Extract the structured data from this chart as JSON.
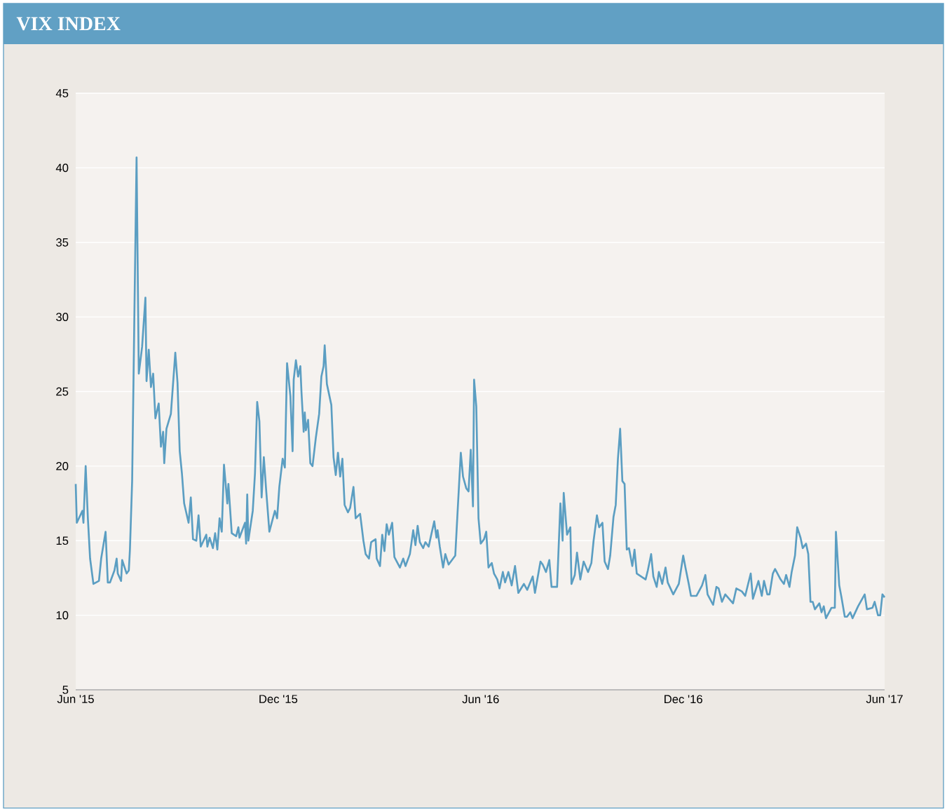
{
  "chart_data": {
    "type": "line",
    "title": "VIX INDEX",
    "xlim": [
      "2015-06-01",
      "2017-06-01"
    ],
    "xticks": [
      {
        "value": "2015-06-01",
        "label": "Jun '15"
      },
      {
        "value": "2015-12-01",
        "label": "Dec '15"
      },
      {
        "value": "2016-06-01",
        "label": "Jun '16"
      },
      {
        "value": "2016-12-01",
        "label": "Dec '16"
      },
      {
        "value": "2017-06-01",
        "label": "Jun '17"
      }
    ],
    "ylim": [
      5,
      45
    ],
    "yticks": [
      5,
      10,
      15,
      20,
      25,
      30,
      35,
      40,
      45
    ],
    "grid": "y",
    "series": [
      {
        "color": "#5b9ec2",
        "x": [
          "2015-06-01",
          "2015-06-02",
          "2015-06-07",
          "2015-06-08",
          "2015-06-10",
          "2015-06-12",
          "2015-06-14",
          "2015-06-17",
          "2015-06-22",
          "2015-06-24",
          "2015-06-28",
          "2015-06-30",
          "2015-07-02",
          "2015-07-06",
          "2015-07-08",
          "2015-07-09",
          "2015-07-12",
          "2015-07-13",
          "2015-07-17",
          "2015-07-19",
          "2015-07-20",
          "2015-07-22",
          "2015-07-24",
          "2015-07-26",
          "2015-07-28",
          "2015-07-31",
          "2015-08-03",
          "2015-08-04",
          "2015-08-06",
          "2015-08-08",
          "2015-08-10",
          "2015-08-12",
          "2015-08-15",
          "2015-08-17",
          "2015-08-19",
          "2015-08-20",
          "2015-08-22",
          "2015-08-26",
          "2015-08-30",
          "2015-09-01",
          "2015-09-03",
          "2015-09-05",
          "2015-09-07",
          "2015-09-11",
          "2015-09-13",
          "2015-09-15",
          "2015-09-18",
          "2015-09-20",
          "2015-09-22",
          "2015-09-27",
          "2015-09-28",
          "2015-09-30",
          "2015-10-03",
          "2015-10-05",
          "2015-10-07",
          "2015-10-09",
          "2015-10-11",
          "2015-10-13",
          "2015-10-16",
          "2015-10-17",
          "2015-10-20",
          "2015-10-24",
          "2015-10-26",
          "2015-10-27",
          "2015-11-01",
          "2015-11-02",
          "2015-11-03",
          "2015-11-04",
          "2015-11-08",
          "2015-11-10",
          "2015-11-12",
          "2015-11-14",
          "2015-11-16",
          "2015-11-18",
          "2015-11-20",
          "2015-11-23",
          "2015-11-28",
          "2015-11-30",
          "2015-12-02",
          "2015-12-05",
          "2015-12-07",
          "2015-12-09",
          "2015-12-12",
          "2015-12-14",
          "2015-12-15",
          "2015-12-17",
          "2015-12-19",
          "2015-12-21",
          "2015-12-22",
          "2015-12-24",
          "2015-12-25",
          "2015-12-26",
          "2015-12-28",
          "2015-12-30",
          "2016-01-01",
          "2016-01-04",
          "2016-01-07",
          "2016-01-09",
          "2016-01-11",
          "2016-01-12",
          "2016-01-14",
          "2016-01-18",
          "2016-01-20",
          "2016-01-22",
          "2016-01-24",
          "2016-01-26",
          "2016-01-28",
          "2016-01-30",
          "2016-02-02",
          "2016-02-04",
          "2016-02-07",
          "2016-02-09",
          "2016-02-13",
          "2016-02-14",
          "2016-02-16",
          "2016-02-18",
          "2016-02-21",
          "2016-02-23",
          "2016-02-27",
          "2016-02-28",
          "2016-03-02",
          "2016-03-04",
          "2016-03-06",
          "2016-03-08",
          "2016-03-10",
          "2016-03-13",
          "2016-03-15",
          "2016-03-20",
          "2016-03-23",
          "2016-03-25",
          "2016-03-29",
          "2016-04-01",
          "2016-04-03",
          "2016-04-05",
          "2016-04-07",
          "2016-04-10",
          "2016-04-12",
          "2016-04-15",
          "2016-04-17",
          "2016-04-20",
          "2016-04-22",
          "2016-04-23",
          "2016-04-25",
          "2016-04-28",
          "2016-04-30",
          "2016-05-03",
          "2016-05-09",
          "2016-05-11",
          "2016-05-14",
          "2016-05-16",
          "2016-05-19",
          "2016-05-21",
          "2016-05-23",
          "2016-05-25",
          "2016-05-26",
          "2016-05-28",
          "2016-05-30",
          "2016-06-01",
          "2016-06-04",
          "2016-06-06",
          "2016-06-08",
          "2016-06-11",
          "2016-06-13",
          "2016-06-16",
          "2016-06-18",
          "2016-06-21",
          "2016-06-23",
          "2016-06-26",
          "2016-06-29",
          "2016-07-02",
          "2016-07-05",
          "2016-07-10",
          "2016-07-13",
          "2016-07-18",
          "2016-07-20",
          "2016-07-25",
          "2016-07-27",
          "2016-07-30",
          "2016-08-02",
          "2016-08-04",
          "2016-08-09",
          "2016-08-12",
          "2016-08-14",
          "2016-08-15",
          "2016-08-18",
          "2016-08-21",
          "2016-08-22",
          "2016-08-25",
          "2016-08-27",
          "2016-08-30",
          "2016-09-02",
          "2016-09-06",
          "2016-09-09",
          "2016-09-11",
          "2016-09-14",
          "2016-09-16",
          "2016-09-19",
          "2016-09-21",
          "2016-09-24",
          "2016-09-26",
          "2016-09-29",
          "2016-10-01",
          "2016-10-03",
          "2016-10-05",
          "2016-10-07",
          "2016-10-09",
          "2016-10-11",
          "2016-10-13",
          "2016-10-16",
          "2016-10-18",
          "2016-10-20",
          "2016-10-26",
          "2016-10-28",
          "2016-10-30",
          "2016-11-02",
          "2016-11-04",
          "2016-11-07",
          "2016-11-09",
          "2016-11-12",
          "2016-11-15",
          "2016-11-17",
          "2016-11-22",
          "2016-11-27",
          "2016-12-01",
          "2016-12-03",
          "2016-12-06",
          "2016-12-08",
          "2016-12-13",
          "2016-12-18",
          "2016-12-21",
          "2016-12-23",
          "2016-12-28",
          "2016-12-31",
          "2017-01-02",
          "2017-01-05",
          "2017-01-08",
          "2017-01-15",
          "2017-01-18",
          "2017-01-23",
          "2017-01-26",
          "2017-01-31",
          "2017-02-02",
          "2017-02-07",
          "2017-02-10",
          "2017-02-12",
          "2017-02-15",
          "2017-02-17",
          "2017-02-20",
          "2017-02-22",
          "2017-02-27",
          "2017-03-02",
          "2017-03-04",
          "2017-03-07",
          "2017-03-09",
          "2017-03-12",
          "2017-03-14",
          "2017-03-17",
          "2017-03-19",
          "2017-03-22",
          "2017-03-24",
          "2017-03-26",
          "2017-03-28",
          "2017-03-30",
          "2017-04-03",
          "2017-04-05",
          "2017-04-07",
          "2017-04-09",
          "2017-04-14",
          "2017-04-17",
          "2017-04-18",
          "2017-04-21",
          "2017-04-23",
          "2017-04-26",
          "2017-04-28",
          "2017-05-01",
          "2017-05-03",
          "2017-05-08",
          "2017-05-14",
          "2017-05-16",
          "2017-05-21",
          "2017-05-23",
          "2017-05-26",
          "2017-05-28",
          "2017-05-30",
          "2017-06-01"
        ],
        "values": [
          18.8,
          16.2,
          17.0,
          16.2,
          20.0,
          16.5,
          13.8,
          12.1,
          12.3,
          13.8,
          15.6,
          12.2,
          12.2,
          13.0,
          13.8,
          12.8,
          12.3,
          13.7,
          12.8,
          13.0,
          14.4,
          19.0,
          30.0,
          40.7,
          26.2,
          28.0,
          31.3,
          25.7,
          27.8,
          25.3,
          26.2,
          23.2,
          24.2,
          21.3,
          22.3,
          20.2,
          22.5,
          23.5,
          27.6,
          25.6,
          21.0,
          19.5,
          17.5,
          16.2,
          17.9,
          15.1,
          15.0,
          16.7,
          14.6,
          15.4,
          14.6,
          15.2,
          14.5,
          15.5,
          14.4,
          16.5,
          15.6,
          20.1,
          17.5,
          18.8,
          15.5,
          15.3,
          15.9,
          15.2,
          16.2,
          14.8,
          18.1,
          15.0,
          17.0,
          19.5,
          24.3,
          23.0,
          17.9,
          20.6,
          18.5,
          15.6,
          17.0,
          16.5,
          18.6,
          20.5,
          19.9,
          26.9,
          24.7,
          21.0,
          25.8,
          27.1,
          26.0,
          26.7,
          25.0,
          22.3,
          23.6,
          22.4,
          23.1,
          20.2,
          20.0,
          21.9,
          23.5,
          26.0,
          26.7,
          28.1,
          25.5,
          24.1,
          20.6,
          19.4,
          20.9,
          19.3,
          20.5,
          17.4,
          16.9,
          17.2,
          18.6,
          16.5,
          16.8,
          16.2,
          15.0,
          14.1,
          13.8,
          14.9,
          15.1,
          13.8,
          13.3,
          15.4,
          14.3,
          16.1,
          15.4,
          16.2,
          13.9,
          13.2,
          13.8,
          13.3,
          14.1,
          15.7,
          14.7,
          16.0,
          14.9,
          14.5,
          14.9,
          14.6,
          15.3,
          16.3,
          15.2,
          15.7,
          14.6,
          13.2,
          14.1,
          13.4,
          14.0,
          16.8,
          20.9,
          19.3,
          18.5,
          18.3,
          21.1,
          17.3,
          25.8,
          24.0,
          16.5,
          14.8,
          15.1,
          15.6,
          13.2,
          13.5,
          12.8,
          12.4,
          11.8,
          12.9,
          12.2,
          12.9,
          12.0,
          13.3,
          11.5,
          12.1,
          11.7,
          12.6,
          11.5,
          13.6,
          13.4,
          12.9,
          13.7,
          11.9,
          11.9,
          17.5,
          15.0,
          18.2,
          15.4,
          15.9,
          12.1,
          12.7,
          14.2,
          12.4,
          13.6,
          12.9,
          13.5,
          15.0,
          16.7,
          15.9,
          16.2,
          13.6,
          13.1,
          14.0,
          16.6,
          17.4,
          20.5,
          22.5,
          19.0,
          18.8,
          14.4,
          14.5,
          13.3,
          14.4,
          12.8,
          12.5,
          12.4,
          13.0,
          14.1,
          12.6,
          11.9,
          12.9,
          12.1,
          13.2,
          12.2,
          11.4,
          12.1,
          14.0,
          13.2,
          12.1,
          11.3,
          11.3,
          12.0,
          12.7,
          11.4,
          10.7,
          11.9,
          11.8,
          10.9,
          11.4,
          10.8,
          11.8,
          11.6,
          11.3,
          12.8,
          11.1,
          12.3,
          11.3,
          12.3,
          11.4,
          11.4,
          12.8,
          13.1,
          12.4,
          12.1,
          12.7,
          11.9,
          12.9,
          14.0,
          15.9,
          15.2,
          14.5,
          14.8,
          14.1,
          10.9,
          10.9,
          10.4,
          10.8,
          10.2,
          10.6,
          9.8,
          10.5,
          10.5,
          15.6,
          12.0,
          11.2,
          9.9,
          9.9,
          10.2,
          9.8,
          10.6,
          11.4,
          10.4,
          10.5,
          10.9,
          10.0,
          10.0,
          11.4,
          11.2
        ]
      }
    ]
  }
}
